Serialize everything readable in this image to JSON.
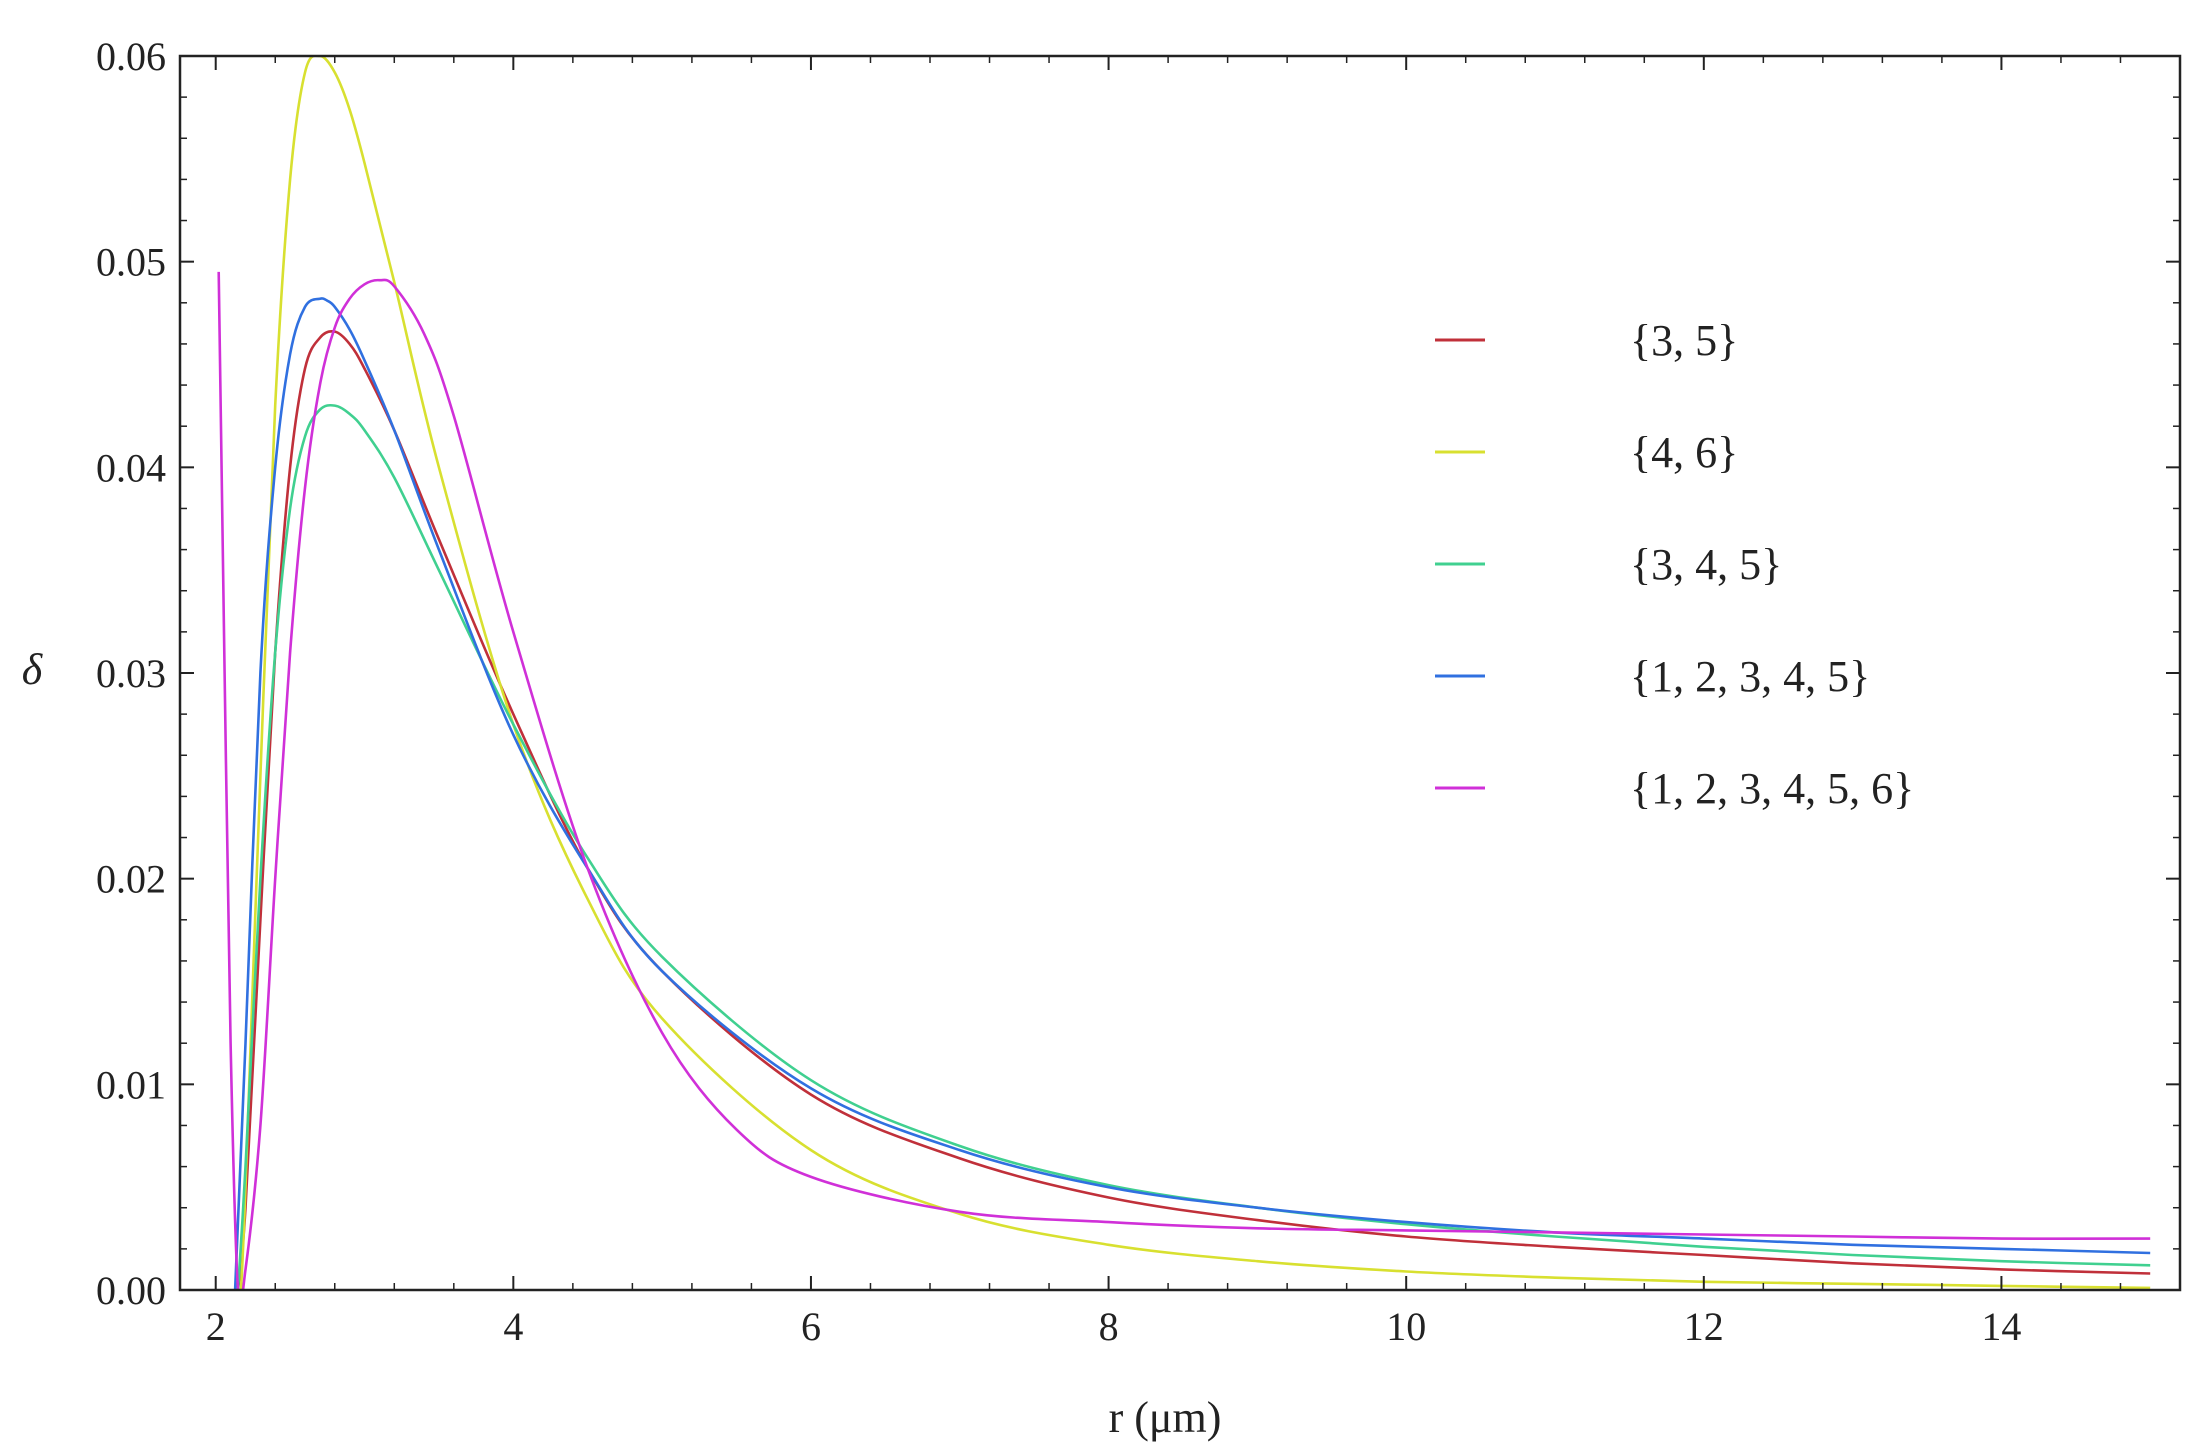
{
  "chart_data": {
    "type": "line",
    "title": "",
    "xlabel": "r (μm)",
    "ylabel": "δ",
    "xlim": [
      1.76,
      15.2
    ],
    "ylim": [
      0,
      0.06
    ],
    "xticks": [
      2,
      4,
      6,
      8,
      10,
      12,
      14
    ],
    "xtick_labels": [
      "2",
      "4",
      "6",
      "8",
      "10",
      "12",
      "14"
    ],
    "yticks": [
      0,
      0.01,
      0.02,
      0.03,
      0.04,
      0.05,
      0.06
    ],
    "ytick_labels": [
      "0.00",
      "0.01",
      "0.02",
      "0.03",
      "0.04",
      "0.05",
      "0.06"
    ],
    "grid": false,
    "legend_position": "right",
    "series": [
      {
        "name": "{3, 5}",
        "color": "#c0303a",
        "x": [
          2.15,
          2.2,
          2.3,
          2.4,
          2.5,
          2.6,
          2.7,
          2.8,
          2.9,
          3.0,
          3.2,
          3.5,
          4.0,
          4.5,
          5.0,
          6.0,
          7.0,
          8.0,
          9.0,
          10.0,
          11.0,
          12.0,
          13.0,
          14.0,
          15.0
        ],
        "y": [
          0.0,
          0.004,
          0.018,
          0.031,
          0.04,
          0.0448,
          0.0463,
          0.0466,
          0.046,
          0.0448,
          0.0418,
          0.0365,
          0.028,
          0.0205,
          0.0155,
          0.0095,
          0.0064,
          0.0045,
          0.0034,
          0.0026,
          0.0021,
          0.0017,
          0.0013,
          0.001,
          0.0008
        ]
      },
      {
        "name": "{4, 6}",
        "color": "#d8e030",
        "x": [
          2.17,
          2.2,
          2.3,
          2.4,
          2.5,
          2.6,
          2.7,
          2.8,
          2.9,
          3.0,
          3.2,
          3.5,
          4.0,
          4.5,
          5.0,
          6.0,
          7.0,
          8.0,
          9.0,
          10.0,
          11.0,
          12.0,
          13.0,
          14.0,
          15.0
        ],
        "y": [
          0.0,
          0.005,
          0.025,
          0.043,
          0.054,
          0.0592,
          0.06,
          0.0592,
          0.0574,
          0.0548,
          0.049,
          0.04,
          0.0275,
          0.019,
          0.0132,
          0.0068,
          0.0037,
          0.0022,
          0.0014,
          0.0009,
          0.0006,
          0.0004,
          0.0003,
          0.0002,
          0.0001
        ]
      },
      {
        "name": "{3, 4, 5}",
        "color": "#40d090",
        "x": [
          2.15,
          2.2,
          2.3,
          2.4,
          2.5,
          2.6,
          2.7,
          2.8,
          2.9,
          3.0,
          3.2,
          3.5,
          4.0,
          4.5,
          5.0,
          6.0,
          7.0,
          8.0,
          9.0,
          10.0,
          11.0,
          12.0,
          13.0,
          14.0,
          15.0
        ],
        "y": [
          0.0,
          0.006,
          0.02,
          0.031,
          0.038,
          0.0415,
          0.0428,
          0.043,
          0.0426,
          0.0418,
          0.0395,
          0.035,
          0.0275,
          0.021,
          0.0162,
          0.0102,
          0.007,
          0.0051,
          0.004,
          0.0032,
          0.0026,
          0.0021,
          0.0017,
          0.0014,
          0.0012
        ]
      },
      {
        "name": "{1, 2, 3, 4, 5}",
        "color": "#3070e0",
        "x": [
          2.13,
          2.2,
          2.3,
          2.4,
          2.5,
          2.6,
          2.7,
          2.75,
          2.8,
          2.9,
          3.0,
          3.2,
          3.5,
          4.0,
          4.5,
          5.0,
          6.0,
          7.0,
          8.0,
          9.0,
          10.0,
          11.0,
          12.0,
          13.0,
          14.0,
          15.0
        ],
        "y": [
          0.0,
          0.012,
          0.03,
          0.04,
          0.0455,
          0.0478,
          0.0482,
          0.0481,
          0.0478,
          0.0467,
          0.0452,
          0.0418,
          0.036,
          0.027,
          0.0205,
          0.0155,
          0.0098,
          0.0068,
          0.005,
          0.004,
          0.0033,
          0.0028,
          0.0025,
          0.0022,
          0.002,
          0.0018
        ]
      },
      {
        "name": "{1, 2, 3, 4, 5, 6}",
        "color": "#d030d8",
        "x": [
          2.02,
          2.06,
          2.1,
          2.15,
          2.2,
          2.3,
          2.4,
          2.5,
          2.6,
          2.7,
          2.8,
          2.9,
          3.0,
          3.1,
          3.2,
          3.4,
          3.6,
          4.0,
          4.5,
          5.0,
          5.5,
          6.0,
          7.0,
          8.0,
          9.0,
          10.0,
          11.0,
          12.0,
          13.0,
          14.0,
          15.0
        ],
        "y": [
          0.0495,
          0.03,
          0.012,
          0.0,
          0.001,
          0.008,
          0.02,
          0.031,
          0.039,
          0.044,
          0.0468,
          0.0482,
          0.0489,
          0.0491,
          0.0488,
          0.0465,
          0.0425,
          0.032,
          0.0205,
          0.0125,
          0.0078,
          0.0055,
          0.0038,
          0.0033,
          0.003,
          0.0029,
          0.0028,
          0.0027,
          0.0026,
          0.0025,
          0.0025
        ]
      }
    ]
  }
}
